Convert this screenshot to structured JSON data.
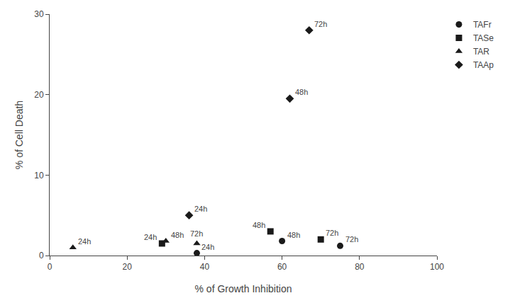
{
  "chart_data": {
    "type": "scatter",
    "xlabel": "% of Growth Inhibition",
    "ylabel": "% of Cell Death",
    "xlim": [
      0,
      100
    ],
    "ylim": [
      0,
      30
    ],
    "xticks": [
      0,
      20,
      40,
      60,
      80,
      100
    ],
    "yticks": [
      0,
      10,
      20,
      30
    ],
    "grid": false,
    "legend": "right",
    "series": [
      {
        "name": "TAFr",
        "marker": "circle",
        "color": "#1a1a1a",
        "x": [
          38,
          60,
          75
        ],
        "values": [
          0.3,
          1.8,
          1.2
        ],
        "labels": [
          "24h",
          "48h",
          "72h"
        ]
      },
      {
        "name": "TASe",
        "marker": "square",
        "color": "#1a1a1a",
        "x": [
          29,
          57,
          70
        ],
        "values": [
          1.5,
          3.0,
          2.0
        ],
        "labels": [
          "24h",
          "48h",
          "72h"
        ]
      },
      {
        "name": "TAR",
        "marker": "triangle-up",
        "color": "#1a1a1a",
        "x": [
          6,
          30,
          38
        ],
        "values": [
          1.0,
          1.8,
          1.5
        ],
        "labels": [
          "24h",
          "48h",
          "72h"
        ]
      },
      {
        "name": "TAAp",
        "marker": "diamond",
        "color": "#1a1a1a",
        "x": [
          36,
          62,
          67
        ],
        "values": [
          5.0,
          19.5,
          28.0
        ],
        "labels": [
          "24h",
          "48h",
          "72h"
        ]
      }
    ]
  }
}
